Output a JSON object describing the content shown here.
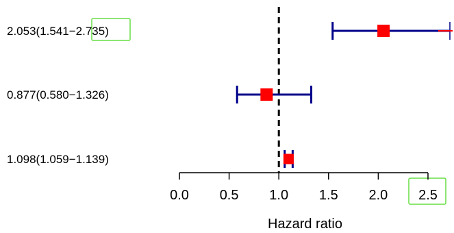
{
  "chart_data": {
    "type": "forest",
    "xlabel": "Hazard ratio",
    "xlim": [
      0,
      2.5
    ],
    "xticks": [
      0.0,
      0.5,
      1.0,
      1.5,
      2.0,
      2.5
    ],
    "tick_labels": [
      "0.0",
      "0.5",
      "1.0",
      "1.5",
      "2.0",
      "2.5"
    ],
    "reference_line": 1.0,
    "rows": [
      {
        "label": "2.053(1.541−2.735)",
        "hr": 2.053,
        "lower": 1.541,
        "upper": 2.735
      },
      {
        "label": "0.877(0.580−1.326)",
        "hr": 0.877,
        "lower": 0.58,
        "upper": 1.326
      },
      {
        "label": "1.098(1.059−1.139)",
        "hr": 1.098,
        "lower": 1.059,
        "upper": 1.139
      }
    ],
    "colors": {
      "ci_line": "#00008b",
      "point": "#ff0000",
      "reference_line": "#000000",
      "axis": "#000000",
      "highlight_box": "#66dd44"
    }
  }
}
